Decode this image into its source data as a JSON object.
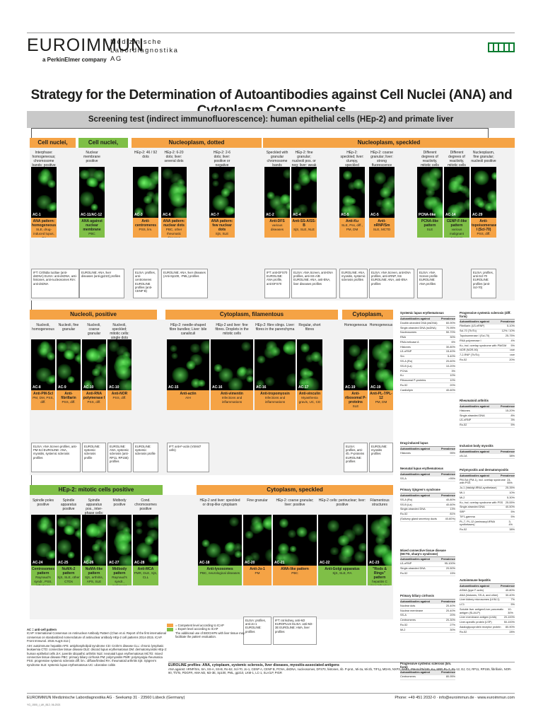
{
  "header": {
    "brand": "EUROIMMUN",
    "brand_sub": "a PerkinElmer company",
    "lab_line1": "Medizinische",
    "lab_line2": "Labordiagnostika",
    "lab_line3": "AG"
  },
  "title": "Strategy for the Determination of Autoantibodies against Cell Nuclei (ANA) and Cytoplasm Components",
  "screening": "Screening test (indirect immunofluorescence): human epithelial cells (HEp-2) and primate liver",
  "colors": {
    "orange": "#f5a345",
    "green": "#7fbf47",
    "grey": "#bdbdbd",
    "fluor": "#3fd13f"
  },
  "sections": {
    "homog": "Cell nuclei, homogen.",
    "peripheral": "Cell nuclei, peripheral",
    "dotted": "Nucleoplasm, dotted",
    "speckled": "Nucleoplasm, speckled",
    "nucleoli": "Nucleoli, positive",
    "filamentous": "Cytoplasm, filamentous",
    "cyto_homog": "Cytoplasm, homogen.",
    "mitotic": "HEp-2: mitotic cells positive",
    "cyto_speckled": "Cytoplasm, speckled"
  },
  "row1": [
    {
      "caption": "Interphase: homogeneous; chromosome bands: positive",
      "code": "AC-1",
      "result": "ANA pattern: homogeneous",
      "disease": "SLE, drug-induced lupus, JIA"
    },
    {
      "caption": "Nuclear membrane positive",
      "code": "AC-11/AC-12",
      "result": "ANA against nuclear membrane",
      "disease": "PBC"
    },
    {
      "caption": "HEp-2: 46 / 92 dots",
      "code": "AC-3",
      "result": "Anti-centromeres",
      "disease": "PSS, lim."
    },
    {
      "caption": "HEp-2: 6-20 dots; liver: several dots",
      "code": "AC-6",
      "result": "ANA pattern: nuclear dots",
      "disease": "PBC, other rheumatic diseases"
    },
    {
      "caption": "HEp-2: 2-6 dots; liver: positive or negative",
      "code": "AC-7",
      "result": "ANA pattern: few nuclear dots",
      "disease": "SjS, SLE"
    },
    {
      "caption": "Speckled with granular chromosome bands",
      "code": "AC-2",
      "result": "Anti-DFS",
      "disease": "various diseases"
    },
    {
      "caption": "HEp-2: fine granular; nucleoli pos. or neg; liver: weak fluorescence",
      "code": "AC-4",
      "result": "Anti-SS-A/SS-B",
      "disease": "SjS, SLE, NLE"
    },
    {
      "caption": "HEp-2: speckled; liver: clumpy, speckled",
      "code": "AC-5",
      "result": "Anti-Ku",
      "disease": "SLE, Pss, diff., PM, DM"
    },
    {
      "caption": "HEp-2: coarse granular; liver: strong fluorescence",
      "code": "AC-5",
      "result": "Anti-nRNP/Sm",
      "disease": "SLE, MCTD"
    },
    {
      "caption": "Different degrees of reactivity, mitotic cells neg.",
      "code": "PCNA-like",
      "result": "PCNA-like pattern",
      "disease": "SLE"
    },
    {
      "caption": "Different degrees of reactivity, mitotic cells pos.",
      "code": "AC-14",
      "result": "CENP-F-like pattern",
      "disease": "various malignant tumours"
    },
    {
      "caption": "Nucleoplasm, fine granular; nucleoli positive",
      "code": "AC-29",
      "result": "Anti-topoisomerase I (Scl-70)",
      "disease": "PSS, diff."
    }
  ],
  "row1_info": [
    "IFT: Crithidia luciliae (anti-dsDNA) ELISA: anti-dsDNA, anti-histones, anti-nucleosomes RIA: anti-dsDNA",
    "EUROLINE: ANA, liver diseases (anti-gp210) profiles",
    "ELISA: profiles, anti-centromeres EUROLINE profiles (anti-CENP B)",
    "EUROLINE: ANA, liver diseases (Anti-Sp100, -PML) profiles",
    "IFT: anti-DFS70 EUROLINE: ANA profile, anti-DFS70",
    "ELISA: ANA Screen, anti-ENA profiles, anti-SS-A/B EUROLINE: ANA, anti-ENA, liver diseases profiles",
    "EUROLINE: ANA, myositis, systemic sclerosis profiles",
    "ELISA: ANA Screen, anti-ENA profiles, anti-nRNP, Sm EUROLINE: ANA, anti-ENA profiles",
    "ELISA: ANA Screen profile EUROLINE: ANA profiles",
    "ELISA: profiles, anti-Scl-70 EUROLINE: profiles (anti-Scl-70)"
  ],
  "row2": [
    {
      "caption": "Nucleoli, homogeneous",
      "code": "AC-8",
      "result": "Anti-PM-Scl",
      "disease": "PM, DM, PSS, diff."
    },
    {
      "caption": "Nucleoli, fine granular",
      "code": "AC-9",
      "result": "Anti-fibrillarin",
      "disease": "PSS, diff."
    },
    {
      "caption": "Nucleoli, coarse granular",
      "code": "AC-10",
      "result": "Anti-RNA polymerase I",
      "disease": "PSS, diff."
    },
    {
      "caption": "Nucleoli, speckled; mitotic cells: single dots",
      "code": "AC-10",
      "result": "Anti-NOR",
      "disease": "PSS, diff."
    },
    {
      "caption": "HEp-2: needle-shaped fibre bundles; Liver: bile canaliculi",
      "code": "AC-15",
      "result": "Anti-actin",
      "disease": "AIH"
    },
    {
      "caption": "HEp-2 and liver: fine fibres. Droplets in the mitotic cells",
      "code": "AC-16",
      "result": "Anti-vimentin",
      "disease": "Infections and inflammations"
    },
    {
      "caption": "HEp-2: fibre slings. Liver: fibres in the parenchyma",
      "code": "AC-16",
      "result": "Anti-tropomyosin",
      "disease": "Infections and inflammations"
    },
    {
      "caption": "Regular, short fibres",
      "code": "AC-17",
      "result": "Anti-vinculin",
      "disease": "Myasthenia gravis, UC, CD"
    },
    {
      "caption": "Homogeneous",
      "code": "AC-19",
      "result": "Anti-ribosomal P-proteins",
      "disease": "SLE"
    },
    {
      "caption": "Homogeneous",
      "code": "AC-19",
      "result": "Anti-PL-7/PL-12",
      "disease": "PM, DM"
    }
  ],
  "row2_info": [
    "ELISA: ANA Screen profiles, anti-PM-Scl EUROLINE: ANA, myositis, systemic sclerosis profiles",
    "EUROLINE: systemic sclerosis profile",
    "EUROLINE: ANA, systemic sclerosis (anti-RP11, RP155) profiles",
    "EUROLINE: systemic sclerosis profile",
    "IFT: anti-F-actin (VSM47 cells)",
    "ELISA: profiles, anti-rib. P-proteins EUROLINE: profiles",
    "EUROLINE: myositis profiles"
  ],
  "row3": [
    {
      "caption": "Spindle poles positive",
      "code": "AC-24",
      "result": "Centrosomes pattern",
      "disease": "Raynaud's syndr., PSS, infections"
    },
    {
      "caption": "Spindle apparatus positive",
      "code": "AC-25",
      "result": "NuMA-2 pattern",
      "disease": "SjS, SLE, other CTDs"
    },
    {
      "caption": "Spindle apparatus pos., inter-phase cells: speckled",
      "code": "AC-26",
      "result": "NuMA-like pattern",
      "disease": "SjS, arthritis, APS, SLE"
    },
    {
      "caption": "Midbody positive",
      "code": "AC-27",
      "result": "Midbody pattern",
      "disease": "Raynaud's syndr., malignant tumours, PSS"
    },
    {
      "caption": "Cond. chromosomes positive",
      "code": "AC-28",
      "result": "Anti-MCA",
      "disease": "PMR, DLE, SjS, CLL"
    },
    {
      "caption": "HEp-2 and liver: speckled or drop-like cytoplasm",
      "code": "AC-18",
      "result": "Anti-lysosomes",
      "disease": "PBC, neurological diseases"
    },
    {
      "caption": "Fine granular",
      "code": "AC-20",
      "result": "Anti-Jo-1",
      "disease": "PM"
    },
    {
      "caption": "HEp-2: coarse granular; liver: positive",
      "code": "AC-21",
      "result": "AMA-like pattern",
      "disease": "PBC"
    },
    {
      "caption": "HEp-2 cells: perinuclear; liver: positive",
      "code": "AC-22",
      "result": "Anti-Golgi apparatus",
      "disease": "SjS, SLE, RA"
    },
    {
      "caption": "Filamentous structures",
      "code": "AC-23",
      "result": "\"Rods & Rings\" pattern",
      "disease": "hepatitis C virus infection"
    }
  ],
  "row3_info": [
    "ELISA: profiles, anti-Jo-1 EUROLINE: profiles",
    "IFT: rat kidney, anti-M2 EUROPLUS ELISA: anti-M2-3E EUROLINE: AMA, liver profiles"
  ],
  "tables": {
    "t1": {
      "title": "Systemic lupus erythematosus",
      "h1": "Autoantibodies against",
      "h2": "Prevalence",
      "rows": [
        [
          "Double-stranded DNA (dsDNA)",
          "60-90%"
        ],
        [
          "Single-stranded DNA (ssDNA)",
          "70-95%"
        ],
        [
          "Nucleosomes",
          "50-70%"
        ],
        [
          "RNA",
          "30%"
        ],
        [
          "RNA-helicase A",
          "6%"
        ],
        [
          "Histones",
          "30-80%"
        ],
        [
          "U1-nRNP",
          "15-40%"
        ],
        [
          "Sm",
          "5-40%"
        ],
        [
          "SS-A (Ro)",
          "20-60%"
        ],
        [
          "SS-B (La)",
          "10-20%"
        ],
        [
          "PCNA",
          "3%"
        ],
        [
          "Ku",
          "10%"
        ],
        [
          "Ribosomal P-proteins",
          "10%"
        ],
        [
          "Ro-52",
          "20%"
        ],
        [
          "Cardiolipin",
          "40-60%"
        ]
      ]
    },
    "t2": {
      "title": "Drug-induced lupus",
      "h1": "Autoantibodies against",
      "h2": "Prevalence",
      "rows": [
        [
          "Histones",
          "95%"
        ]
      ]
    },
    "t3": {
      "title": "Neonatal lupus erythematosus",
      "h1": "Autoantibodies against",
      "h2": "Prevalence",
      "rows": [
        [
          "SS-A",
          ">95%"
        ]
      ]
    },
    "t4": {
      "title": "Primary Sjögren's syndrome",
      "h1": "Autoantibodies against",
      "h2": "Prevalence",
      "rows": [
        [
          "SS-A (Ro)",
          "40-80%"
        ],
        [
          "SS-B (La)",
          "40-60%"
        ],
        [
          "Single-stranded DNA",
          "13%"
        ],
        [
          "Ro-52",
          "81%"
        ],
        [
          "(Salivary gland secretory ducts",
          "40-60%)"
        ]
      ]
    },
    "t5": {
      "title": "Mixed connective tissue disease (MCTD, sharp's syndrome)",
      "h1": "Autoantibodies against",
      "h2": "Prevalence",
      "rows": [
        [
          "U1-nRNP",
          "95-100%"
        ],
        [
          "Single-stranded DNA",
          "20-50%"
        ],
        [
          "Ro-52",
          "15%"
        ]
      ]
    },
    "t6": {
      "title": "Primary biliary cirrhosis",
      "h1": "Autoantibodies against",
      "h2": "Prevalence",
      "rows": [
        [
          "Nuclear dots",
          "20-40%"
        ],
        [
          "Nuclear membrane",
          "20-40%"
        ],
        [
          "SS-A",
          "20%"
        ],
        [
          "Centromeres",
          "20-30%"
        ],
        [
          "Ro-52",
          "27%"
        ],
        [
          "Mi-2",
          "30%"
        ]
      ]
    },
    "t7": {
      "title": "Progressive systemic sclerosis (lim. form)",
      "h1": "Autoantibodies against",
      "h2": "Prevalence",
      "rows": [
        [
          "Centromeres",
          "80-95%"
        ]
      ]
    },
    "t8": {
      "title": "Progressive systemic sclerosis (diff. form)",
      "h1": "Autoantibodies against",
      "h2": "Prevalence",
      "rows": [
        [
          "Fibrillarin (U3-nRNP)",
          "5-10%"
        ],
        [
          "Scl-70 (Th/To)",
          "12% / 10%"
        ],
        [
          "Topoisomerase I (Scl-70)",
          "25-75%"
        ],
        [
          "RNA polymerase I",
          "4%"
        ],
        [
          "Ku, incl. overlap syndrome with PM/DM",
          "5%"
        ],
        [
          "NOR (NOR-90)",
          "rare"
        ],
        [
          "7-2-RNP (Th/To)",
          "rare"
        ],
        [
          "Ro-52",
          "20%"
        ]
      ]
    },
    "t9": {
      "title": "Rheumatoid arthritis",
      "h1": "Autoantibodies against",
      "h2": "Prevalence",
      "rows": [
        [
          "Histones",
          "15-20%"
        ],
        [
          "Single-stranded DNA",
          "8%"
        ],
        [
          "U1-nRNP",
          "3%"
        ],
        [
          "Ro-52",
          "5%"
        ]
      ]
    },
    "t10": {
      "title": "Inclusion body myositis",
      "h1": "Autoantibodies against",
      "h2": "Prevalence",
      "rows": [
        [
          "cN-1A",
          "38%"
        ]
      ]
    },
    "t11": {
      "title": "Polymyositis and dermatomyositis",
      "h1": "Autoantibodies against",
      "h2": "Prevalence",
      "rows": [
        [
          "PM-Scl (PM-1), incl. overlap syndrome with PSS",
          "24-55%"
        ],
        [
          "Jo-1 (histidyl-tRNA-synthetase)",
          "25-35%"
        ],
        [
          "Mi-1",
          "10%"
        ],
        [
          "Mi-2",
          "5-30%"
        ],
        [
          "Ku, incl. overlap syndrome with PSS",
          "25-55%"
        ],
        [
          "Single-stranded DNA",
          "40-50%"
        ],
        [
          "SRP",
          "5%"
        ],
        [
          "TIF1-gamma",
          "5%"
        ],
        [
          "PL-7, PL-12 (aminoacyl-tRNA synthetases)",
          "3-4%"
        ],
        [
          "Ro-52",
          "38%"
        ]
      ]
    },
    "t12": {
      "title": "Autoimmune hepatitis",
      "h1": "Autoantibodies against",
      "h2": "Prevalence",
      "rows": [
        [
          "ASMA (type F-actin)",
          "40-80%"
        ],
        [
          "ANA (histones, SS-A, and other)",
          "30-40%"
        ],
        [
          "Liver kidney microsomes (LKM-1)",
          "7%"
        ],
        [
          "LC1",
          "5%"
        ],
        [
          "Soluble liver antigen/Liver pancreatic antigen (SLA/LP)",
          "10-30%"
        ],
        [
          "Liver membrane antigen (LMA)",
          "20-100%"
        ],
        [
          "Liver-specific protein (LSP)",
          "50-100%"
        ],
        [
          "Asialoglycoprotein receptor protein",
          "80-90%"
        ],
        [
          "Ro-52",
          "28%"
        ]
      ]
    }
  },
  "legend": {
    "ac": "AC = anti-cell pattern",
    "icap": "ICAP: International Consensus on Antinuclear Antibody Pattern (Chan et al. Report of the first international consensus on standardized nomenclature of antinuclear antibody HEp-2 cell patterns 2014-2015. ICAP. Front Immunol. 2015 Aug;6:412.)",
    "abbrev": "AIH: autoimmune hepatitis APS: antiphospholipid syndrome CD: Crohn's disease CLL: chronic lymphatic leukaemia CTD: connective tissue disease DLE: discoid lupus erythematosus DM: dermatomyositis HEp-2: human epithelial cells JIA: juvenile idiopathic arthritis NLE: neonatal lupus erythematosus MCTD: mixed connective tissue disease PBC: primary biliary cirrhosis PM: polymyositis PMR: polymyalgia rheumatica PSS: progressive systemic sclerosis diff. lim.: diffuse/limited RA: rheumatoid arthritis SjS: Sjögren's syndrome SLE: systemic lupus erythematosus UC: ulcerative colitis",
    "competent": "= Competent level according to ICAP",
    "expert": "= Expert level according to ICAP",
    "note": "The additional use of BIOCHIPs with liver tissue may facilitate the pattern evaluation."
  },
  "euroline_note": {
    "title": "EUROLINE profiles: ANA, cytoplasm, systemic sclerosis, liver diseases, myositis-associated antigens",
    "text": "ANA against: nRNP/Sm, Sm, SS-A, SS-B, Ro-52, Scl-70, Jo-1, CENP A, CENP B, PCNA, dsDNA, nucleosomes, DFS70, histones, rib. P-prot., Mi-2a, Mi-2b, TIF1y, MDA5, NXP2, SAE1, PM-Scl75/100, Ku, SRP, PL-7, PL-12, EJ, OJ, RP11, RP155, fibrillarin, NOR-90, Th/To, PDGFR, AMA M2, M2-3E, Sp100, PML, gp210, LKM-1, LC-1, SLA/LP, PIGR"
  },
  "footer": {
    "company": "EUROIMMUN Medizinische Labordiagnostika AG · Seekamp 31 · 23560 Lübeck (Germany)",
    "contact": "Phone: +49 451 2032-0 · info@euroimmun.de · www.euroimmun.com",
    "code": "YG_1500_I_UK_B12, 06-2021"
  }
}
